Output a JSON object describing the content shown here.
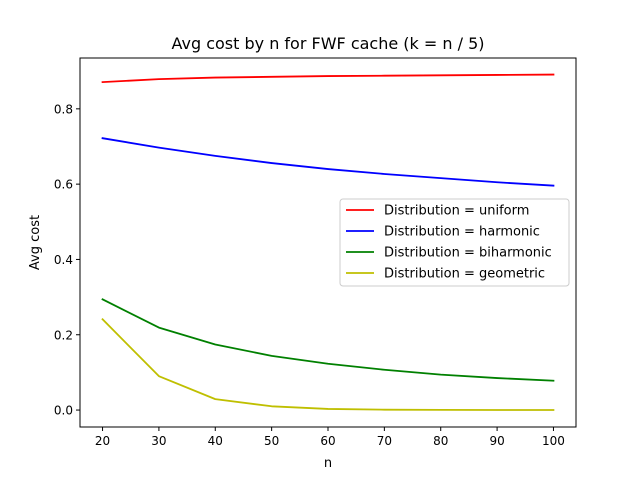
{
  "chart_data": {
    "type": "line",
    "title": "Avg cost by n for FWF cache (k = n / 5)",
    "xlabel": "n",
    "ylabel": "Avg cost",
    "x": [
      20,
      30,
      40,
      50,
      60,
      70,
      80,
      90,
      100
    ],
    "xlim": [
      16,
      104
    ],
    "ylim": [
      -0.045,
      0.935
    ],
    "xticks": [
      20,
      30,
      40,
      50,
      60,
      70,
      80,
      90,
      100
    ],
    "yticks": [
      0.0,
      0.2,
      0.4,
      0.6,
      0.8
    ],
    "ytick_labels": [
      "0.0",
      "0.2",
      "0.4",
      "0.6",
      "0.8"
    ],
    "grid": false,
    "legend_position": "center-right",
    "series": [
      {
        "name": "Distribution = uniform",
        "color": "#ff0000",
        "values": [
          0.871,
          0.879,
          0.883,
          0.885,
          0.887,
          0.888,
          0.889,
          0.89,
          0.891
        ]
      },
      {
        "name": "Distribution = harmonic",
        "color": "#0000ff",
        "values": [
          0.722,
          0.697,
          0.675,
          0.656,
          0.64,
          0.627,
          0.616,
          0.605,
          0.596
        ]
      },
      {
        "name": "Distribution = biharmonic",
        "color": "#008000",
        "values": [
          0.294,
          0.219,
          0.174,
          0.144,
          0.123,
          0.107,
          0.094,
          0.085,
          0.078
        ]
      },
      {
        "name": "Distribution = geometric",
        "color": "#bfbf00",
        "values": [
          0.241,
          0.09,
          0.029,
          0.01,
          0.003,
          0.001,
          0.0005,
          0.0002,
          0.0001
        ]
      }
    ]
  }
}
